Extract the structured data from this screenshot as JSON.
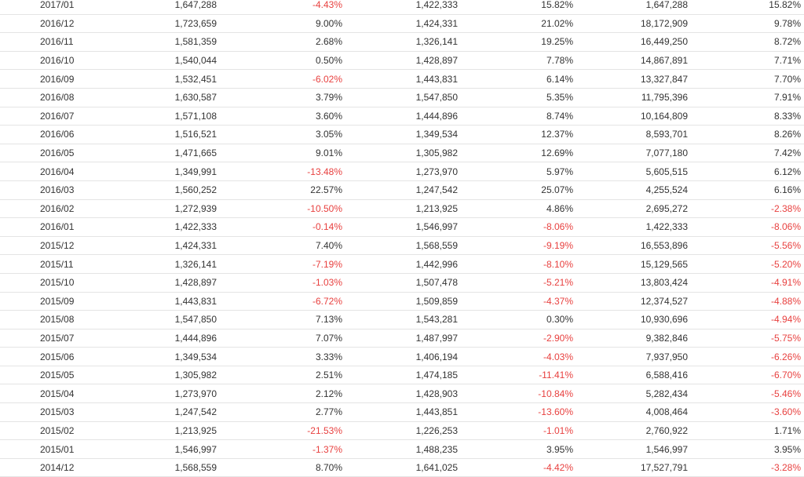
{
  "table": {
    "rows": [
      [
        "2017/01",
        "1,647,288",
        "-4.43%",
        "1,422,333",
        "15.82%",
        "1,647,288",
        "15.82%"
      ],
      [
        "2016/12",
        "1,723,659",
        "9.00%",
        "1,424,331",
        "21.02%",
        "18,172,909",
        "9.78%"
      ],
      [
        "2016/11",
        "1,581,359",
        "2.68%",
        "1,326,141",
        "19.25%",
        "16,449,250",
        "8.72%"
      ],
      [
        "2016/10",
        "1,540,044",
        "0.50%",
        "1,428,897",
        "7.78%",
        "14,867,891",
        "7.71%"
      ],
      [
        "2016/09",
        "1,532,451",
        "-6.02%",
        "1,443,831",
        "6.14%",
        "13,327,847",
        "7.70%"
      ],
      [
        "2016/08",
        "1,630,587",
        "3.79%",
        "1,547,850",
        "5.35%",
        "11,795,396",
        "7.91%"
      ],
      [
        "2016/07",
        "1,571,108",
        "3.60%",
        "1,444,896",
        "8.74%",
        "10,164,809",
        "8.33%"
      ],
      [
        "2016/06",
        "1,516,521",
        "3.05%",
        "1,349,534",
        "12.37%",
        "8,593,701",
        "8.26%"
      ],
      [
        "2016/05",
        "1,471,665",
        "9.01%",
        "1,305,982",
        "12.69%",
        "7,077,180",
        "7.42%"
      ],
      [
        "2016/04",
        "1,349,991",
        "-13.48%",
        "1,273,970",
        "5.97%",
        "5,605,515",
        "6.12%"
      ],
      [
        "2016/03",
        "1,560,252",
        "22.57%",
        "1,247,542",
        "25.07%",
        "4,255,524",
        "6.16%"
      ],
      [
        "2016/02",
        "1,272,939",
        "-10.50%",
        "1,213,925",
        "4.86%",
        "2,695,272",
        "-2.38%"
      ],
      [
        "2016/01",
        "1,422,333",
        "-0.14%",
        "1,546,997",
        "-8.06%",
        "1,422,333",
        "-8.06%"
      ],
      [
        "2015/12",
        "1,424,331",
        "7.40%",
        "1,568,559",
        "-9.19%",
        "16,553,896",
        "-5.56%"
      ],
      [
        "2015/11",
        "1,326,141",
        "-7.19%",
        "1,442,996",
        "-8.10%",
        "15,129,565",
        "-5.20%"
      ],
      [
        "2015/10",
        "1,428,897",
        "-1.03%",
        "1,507,478",
        "-5.21%",
        "13,803,424",
        "-4.91%"
      ],
      [
        "2015/09",
        "1,443,831",
        "-6.72%",
        "1,509,859",
        "-4.37%",
        "12,374,527",
        "-4.88%"
      ],
      [
        "2015/08",
        "1,547,850",
        "7.13%",
        "1,543,281",
        "0.30%",
        "10,930,696",
        "-4.94%"
      ],
      [
        "2015/07",
        "1,444,896",
        "7.07%",
        "1,487,997",
        "-2.90%",
        "9,382,846",
        "-5.75%"
      ],
      [
        "2015/06",
        "1,349,534",
        "3.33%",
        "1,406,194",
        "-4.03%",
        "7,937,950",
        "-6.26%"
      ],
      [
        "2015/05",
        "1,305,982",
        "2.51%",
        "1,474,185",
        "-11.41%",
        "6,588,416",
        "-6.70%"
      ],
      [
        "2015/04",
        "1,273,970",
        "2.12%",
        "1,428,903",
        "-10.84%",
        "5,282,434",
        "-5.46%"
      ],
      [
        "2015/03",
        "1,247,542",
        "2.77%",
        "1,443,851",
        "-13.60%",
        "4,008,464",
        "-3.60%"
      ],
      [
        "2015/02",
        "1,213,925",
        "-21.53%",
        "1,226,253",
        "-1.01%",
        "2,760,922",
        "1.71%"
      ],
      [
        "2015/01",
        "1,546,997",
        "-1.37%",
        "1,488,235",
        "3.95%",
        "1,546,997",
        "3.95%"
      ],
      [
        "2014/12",
        "1,568,559",
        "8.70%",
        "1,641,025",
        "-4.42%",
        "17,527,791",
        "-3.28%"
      ]
    ]
  },
  "colors": {
    "negative": "#e8403f",
    "text": "#333333",
    "row_border": "#e4e4e4"
  }
}
